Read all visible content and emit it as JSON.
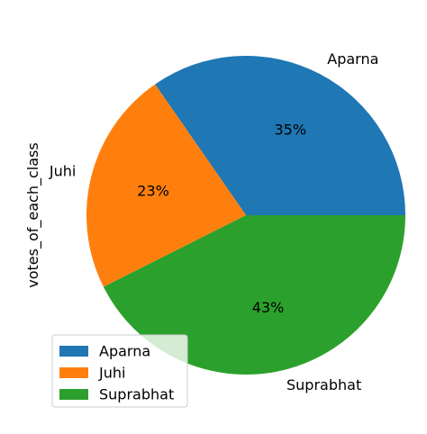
{
  "chart_data": {
    "type": "pie",
    "ylabel": "votes_of_each_class",
    "slices": [
      {
        "label": "Aparna",
        "value": 35,
        "pct_label": "35%",
        "color": "#1f77b4"
      },
      {
        "label": "Juhi",
        "value": 23,
        "pct_label": "23%",
        "color": "#ff7f0e"
      },
      {
        "label": "Suprabhat",
        "value": 43,
        "pct_label": "43%",
        "color": "#2ca02c"
      }
    ],
    "start_angle_deg": 0,
    "direction": "counterclockwise",
    "legend": {
      "placement": "lower-left",
      "entries": [
        "Aparna",
        "Juhi",
        "Suprabhat"
      ]
    }
  }
}
